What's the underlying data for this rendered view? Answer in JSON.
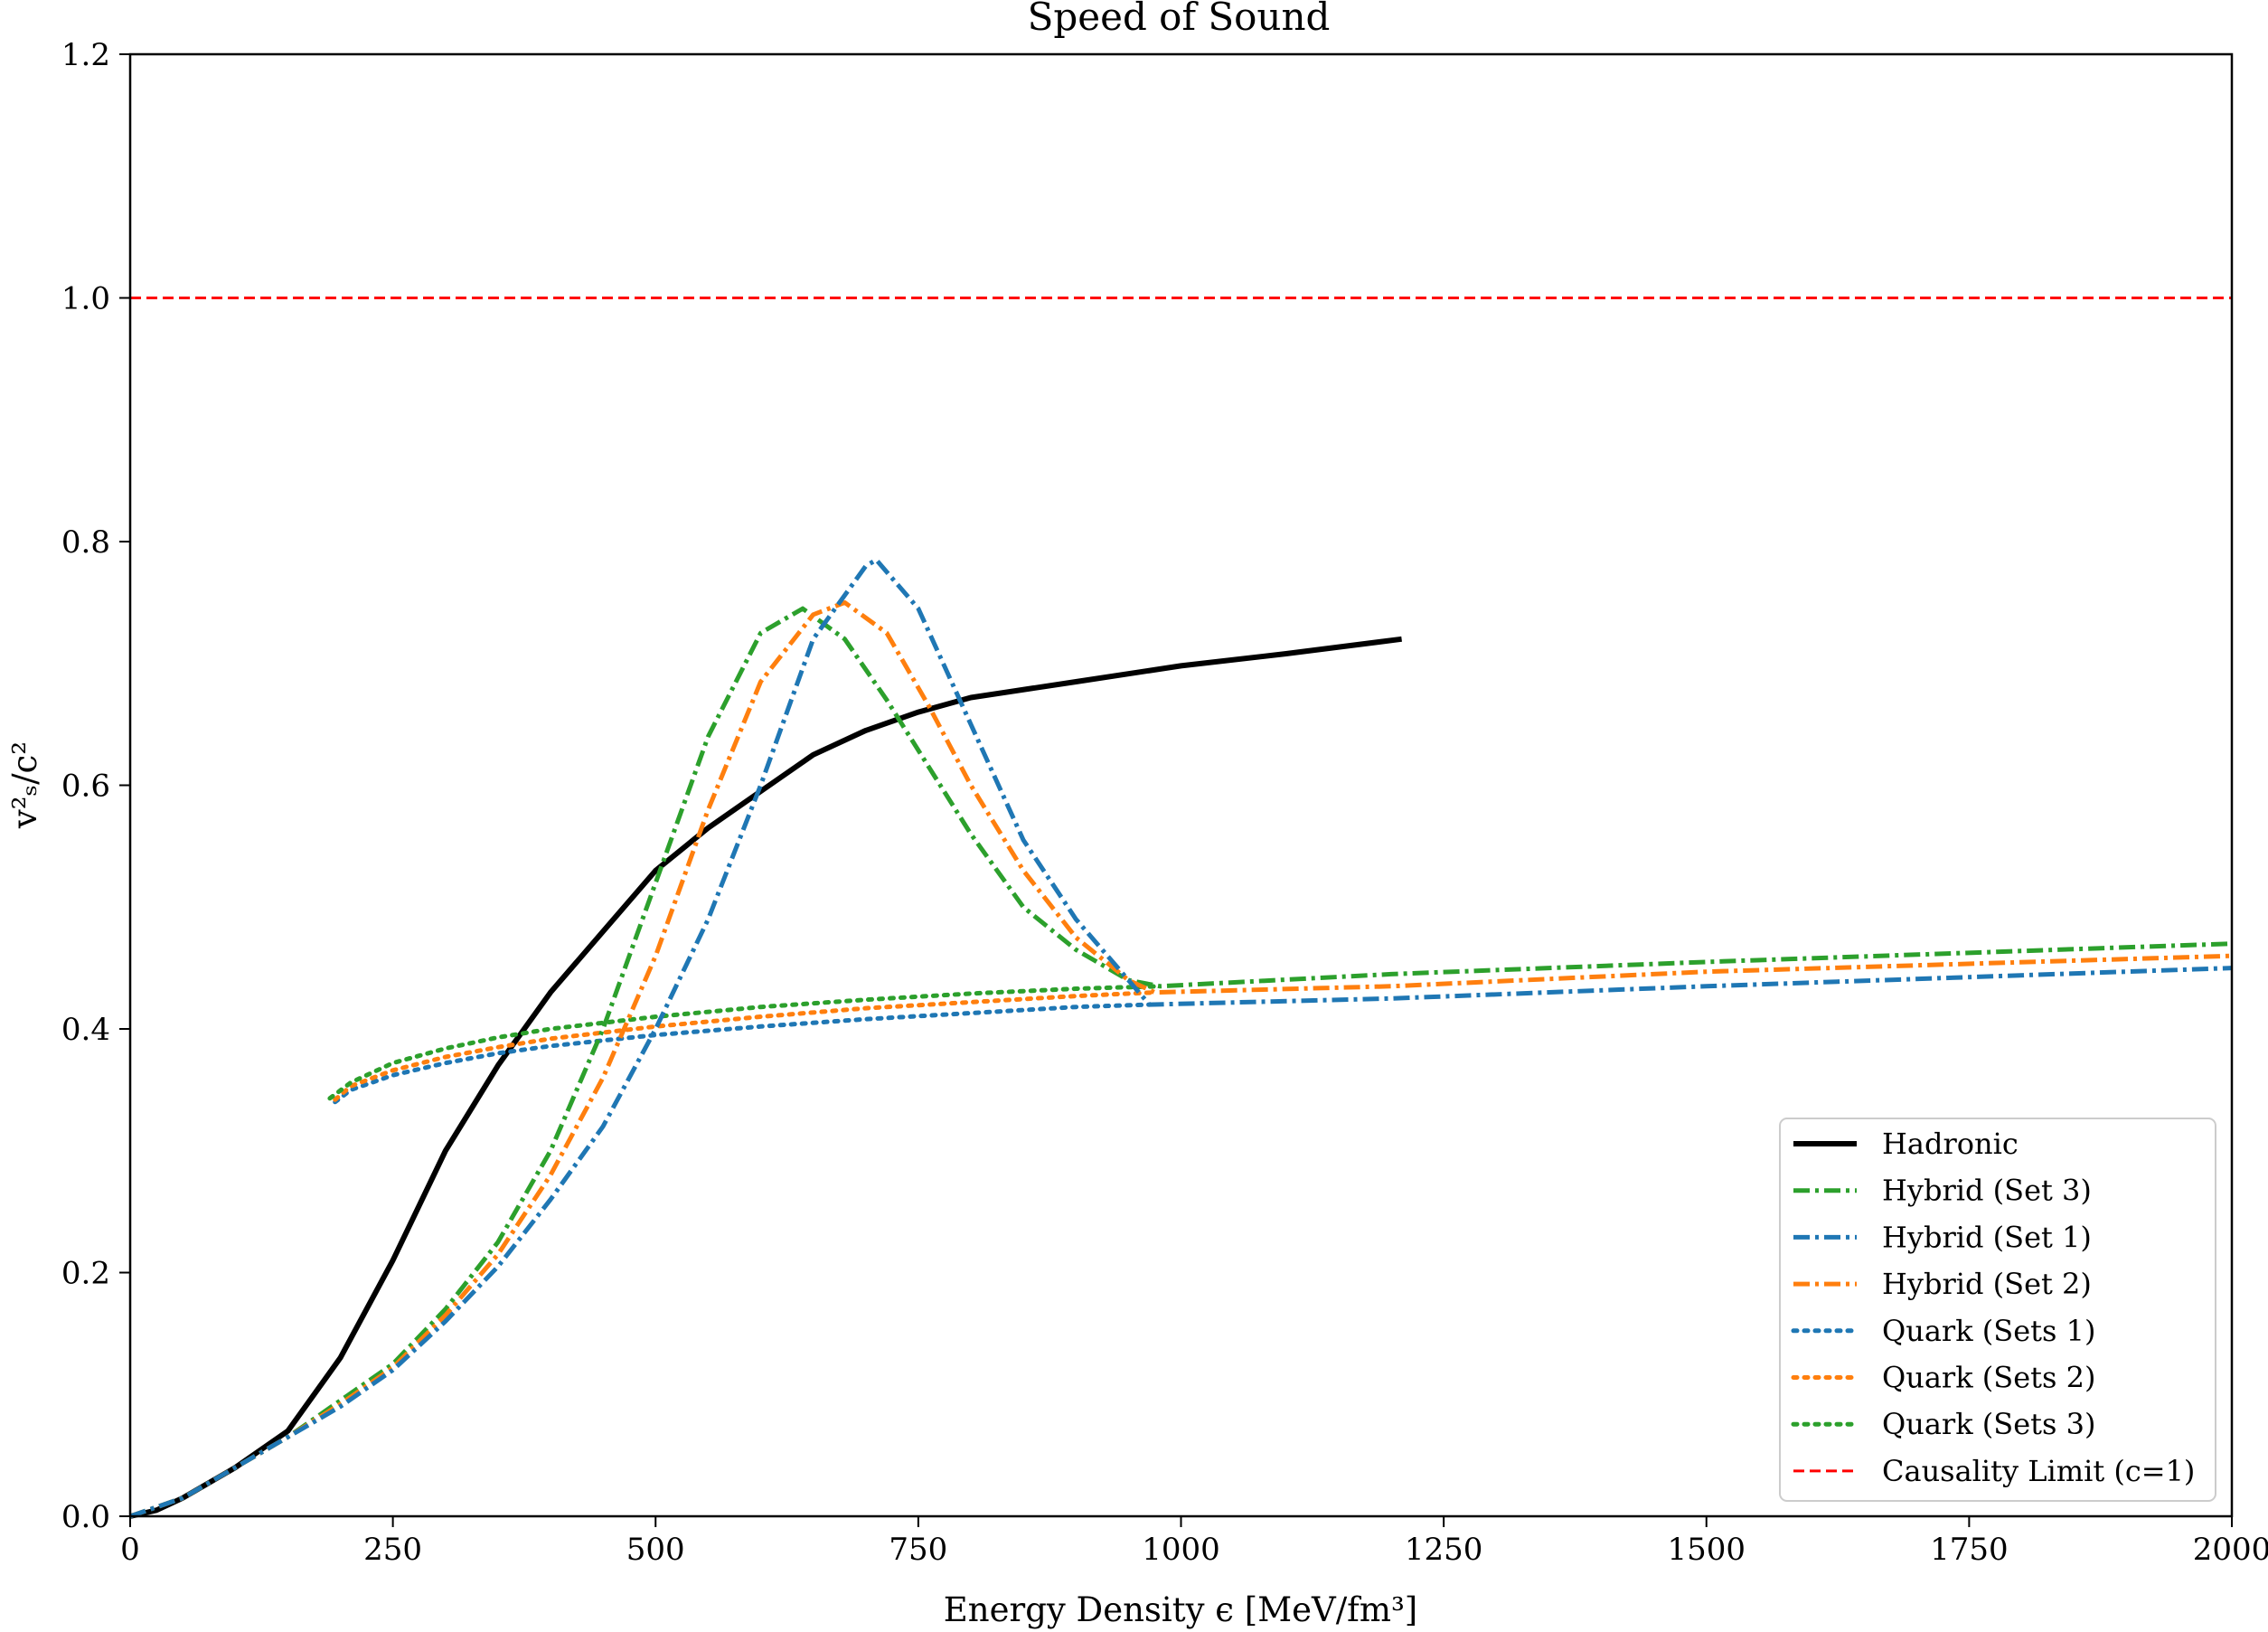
{
  "chart_data": {
    "type": "line",
    "title": "Speed of Sound",
    "xlabel": "Energy Density ϵ [MeV/fm³]",
    "ylabel": "v²ₛ/c²",
    "xlim": [
      0,
      2000
    ],
    "ylim": [
      0,
      1.2
    ],
    "xticks": [
      "0",
      "250",
      "500",
      "750",
      "1000",
      "1250",
      "1500",
      "1750",
      "2000"
    ],
    "yticks": [
      "0.0",
      "0.2",
      "0.4",
      "0.6",
      "0.8",
      "1.0",
      "1.2"
    ],
    "grid": false,
    "legend_position": "lower-right",
    "series": [
      {
        "name": "Hadronic",
        "color": "#000000",
        "style": "solid",
        "x": [
          0,
          25,
          50,
          100,
          150,
          200,
          250,
          300,
          350,
          400,
          450,
          500,
          550,
          600,
          650,
          700,
          750,
          800,
          900,
          1000,
          1100,
          1210
        ],
        "y": [
          0.0,
          0.005,
          0.015,
          0.04,
          0.07,
          0.13,
          0.21,
          0.3,
          0.37,
          0.43,
          0.48,
          0.53,
          0.565,
          0.595,
          0.625,
          0.645,
          0.66,
          0.672,
          0.685,
          0.698,
          0.708,
          0.72
        ]
      },
      {
        "name": "Hybrid (Set 3)",
        "color": "#2ca02c",
        "style": "dashdot",
        "x": [
          0,
          50,
          100,
          150,
          200,
          250,
          300,
          350,
          400,
          450,
          500,
          550,
          600,
          640,
          680,
          720,
          760,
          800,
          850,
          900,
          950,
          980,
          1200,
          1500,
          2000
        ],
        "y": [
          0.0,
          0.015,
          0.04,
          0.065,
          0.095,
          0.125,
          0.17,
          0.225,
          0.3,
          0.4,
          0.52,
          0.64,
          0.725,
          0.745,
          0.72,
          0.67,
          0.615,
          0.56,
          0.5,
          0.465,
          0.44,
          0.435,
          0.445,
          0.455,
          0.47
        ]
      },
      {
        "name": "Hybrid (Set 1)",
        "color": "#1f77b4",
        "style": "dashdot",
        "x": [
          0,
          50,
          100,
          150,
          200,
          250,
          300,
          350,
          400,
          450,
          500,
          550,
          600,
          650,
          700,
          710,
          750,
          800,
          850,
          900,
          950,
          970,
          1200,
          1500,
          2000
        ],
        "y": [
          0.0,
          0.015,
          0.04,
          0.065,
          0.09,
          0.12,
          0.16,
          0.205,
          0.26,
          0.32,
          0.4,
          0.49,
          0.6,
          0.72,
          0.78,
          0.785,
          0.745,
          0.65,
          0.555,
          0.49,
          0.44,
          0.42,
          0.425,
          0.435,
          0.45
        ]
      },
      {
        "name": "Hybrid (Set 2)",
        "color": "#ff7f0e",
        "style": "dashdot",
        "x": [
          0,
          50,
          100,
          150,
          200,
          250,
          300,
          350,
          400,
          450,
          500,
          550,
          600,
          650,
          680,
          720,
          760,
          800,
          850,
          900,
          950,
          975,
          1200,
          1500,
          2000
        ],
        "y": [
          0.0,
          0.015,
          0.04,
          0.065,
          0.092,
          0.122,
          0.165,
          0.215,
          0.28,
          0.36,
          0.46,
          0.58,
          0.685,
          0.74,
          0.75,
          0.725,
          0.665,
          0.6,
          0.53,
          0.475,
          0.44,
          0.43,
          0.435,
          0.447,
          0.46
        ]
      },
      {
        "name": "Quark (Sets 1)",
        "color": "#1f77b4",
        "style": "dotted",
        "x": [
          195,
          210,
          250,
          300,
          350,
          400,
          500,
          600,
          700,
          800,
          900,
          970
        ],
        "y": [
          0.34,
          0.35,
          0.362,
          0.372,
          0.38,
          0.386,
          0.395,
          0.402,
          0.408,
          0.413,
          0.418,
          0.42
        ]
      },
      {
        "name": "Quark (Sets 2)",
        "color": "#ff7f0e",
        "style": "dotted",
        "x": [
          195,
          210,
          250,
          300,
          350,
          400,
          500,
          600,
          700,
          800,
          900,
          975
        ],
        "y": [
          0.342,
          0.353,
          0.366,
          0.377,
          0.385,
          0.392,
          0.402,
          0.41,
          0.417,
          0.422,
          0.427,
          0.43
        ]
      },
      {
        "name": "Quark (Sets 3)",
        "color": "#2ca02c",
        "style": "dotted",
        "x": [
          190,
          210,
          250,
          300,
          350,
          400,
          500,
          600,
          700,
          800,
          900,
          980
        ],
        "y": [
          0.343,
          0.356,
          0.372,
          0.384,
          0.393,
          0.4,
          0.41,
          0.418,
          0.424,
          0.429,
          0.433,
          0.435
        ]
      },
      {
        "name": "Causality Limit (c=1)",
        "color": "#ff0000",
        "style": "dashed",
        "x": [
          0,
          2000
        ],
        "y": [
          1.0,
          1.0
        ]
      }
    ]
  }
}
